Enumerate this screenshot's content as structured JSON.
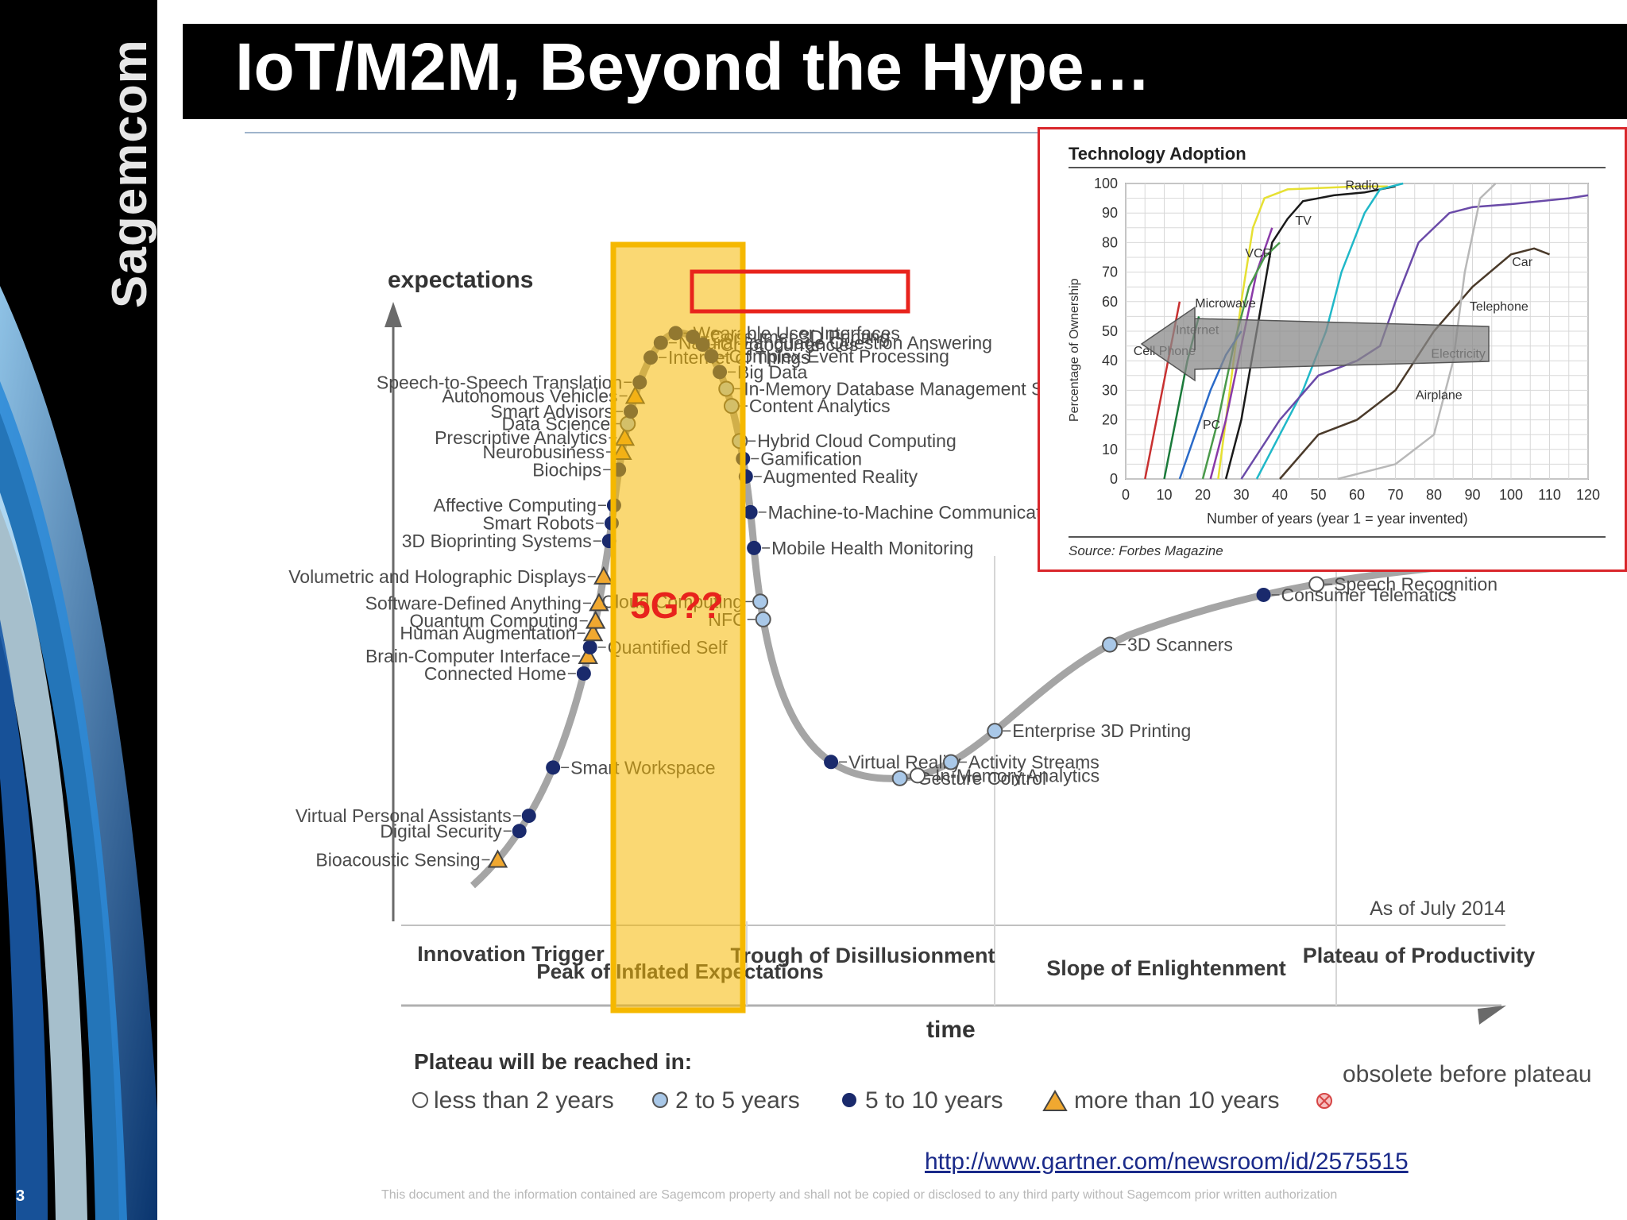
{
  "brand": "Sagemcom",
  "page_number": "3",
  "title": "IoT/M2M, Beyond the Hype…",
  "url": "http://www.gartner.com/newsroom/id/2575515",
  "footer": "This document and the information contained are Sagemcom property and shall not be copied or disclosed to any third party without Sagemcom prior written authorization",
  "colors": {
    "accent_orange": "#f5b800",
    "highlight_red": "#e8231c",
    "curve": "#a0a0a0",
    "dark_dot": "#1a2a6c",
    "light_dot": "#a9c8e8"
  },
  "chart_data": [
    {
      "type": "scatter",
      "title": "",
      "ylabel": "expectations",
      "xlabel": "time",
      "as_of": "As of July 2014",
      "phases": [
        "Innovation Trigger",
        "Peak of Inflated Expectations",
        "Trough of Disillusionment",
        "Slope of Enlightenment",
        "Plateau of Productivity"
      ],
      "annotation": "5G??",
      "highlight": "Internet of Things",
      "legend_title": "Plateau will be reached in:",
      "legend": [
        {
          "label": "less than 2 years",
          "marker": "open-circle"
        },
        {
          "label": "2 to 5 years",
          "marker": "light-circle"
        },
        {
          "label": "5 to 10 years",
          "marker": "dark-circle"
        },
        {
          "label": "more than 10 years",
          "marker": "triangle"
        },
        {
          "label": "obsolete before plateau",
          "marker": "crossed-circle"
        }
      ],
      "items": [
        {
          "label": "Bioacoustic Sensing",
          "t": 0.02,
          "cat": "triangle",
          "side": "left"
        },
        {
          "label": "Digital Security",
          "t": 0.04,
          "cat": "dark",
          "side": "left"
        },
        {
          "label": "Virtual Personal Assistants",
          "t": 0.05,
          "cat": "dark",
          "side": "left"
        },
        {
          "label": "Smart Workspace",
          "t": 0.08,
          "cat": "dark",
          "side": "right"
        },
        {
          "label": "Connected Home",
          "t": 0.135,
          "cat": "dark",
          "side": "left"
        },
        {
          "label": "Brain-Computer Interface",
          "t": 0.145,
          "cat": "triangle",
          "side": "left"
        },
        {
          "label": "Quantified Self",
          "t": 0.15,
          "cat": "dark",
          "side": "right"
        },
        {
          "label": "Human Augmentation",
          "t": 0.158,
          "cat": "triangle",
          "side": "left"
        },
        {
          "label": "Quantum Computing",
          "t": 0.165,
          "cat": "triangle",
          "side": "left"
        },
        {
          "label": "Software-Defined Anything",
          "t": 0.175,
          "cat": "triangle",
          "side": "left"
        },
        {
          "label": "Volumetric and Holographic Displays",
          "t": 0.19,
          "cat": "triangle",
          "side": "left"
        },
        {
          "label": "3D Bioprinting Systems",
          "t": 0.21,
          "cat": "dark",
          "side": "left"
        },
        {
          "label": "Smart Robots",
          "t": 0.22,
          "cat": "dark",
          "side": "left"
        },
        {
          "label": "Affective Computing",
          "t": 0.23,
          "cat": "dark",
          "side": "left"
        },
        {
          "label": "Biochips",
          "t": 0.25,
          "cat": "dark",
          "side": "left"
        },
        {
          "label": "Neurobusiness",
          "t": 0.26,
          "cat": "triangle",
          "side": "left"
        },
        {
          "label": "Prescriptive Analytics",
          "t": 0.268,
          "cat": "triangle",
          "side": "left"
        },
        {
          "label": "Data Science",
          "t": 0.276,
          "cat": "light",
          "side": "left"
        },
        {
          "label": "Smart Advisors",
          "t": 0.283,
          "cat": "dark",
          "side": "left"
        },
        {
          "label": "Autonomous Vehicles",
          "t": 0.292,
          "cat": "triangle",
          "side": "left"
        },
        {
          "label": "Speech-to-Speech Translation",
          "t": 0.3,
          "cat": "dark",
          "side": "left"
        },
        {
          "label": "Internet of Things",
          "t": 0.315,
          "cat": "dark",
          "side": "right"
        },
        {
          "label": "Natural-Language Question Answering",
          "t": 0.325,
          "cat": "dark",
          "side": "right"
        },
        {
          "label": "Wearable User Interfaces",
          "t": 0.335,
          "cat": "dark",
          "side": "right"
        },
        {
          "label": "Consumer 3D Printing",
          "t": 0.345,
          "cat": "dark",
          "side": "right"
        },
        {
          "label": "Cryptocurrencies",
          "t": 0.352,
          "cat": "dark",
          "side": "right"
        },
        {
          "label": "Complex-Event Processing",
          "t": 0.36,
          "cat": "dark",
          "side": "right"
        },
        {
          "label": "Big Data",
          "t": 0.37,
          "cat": "dark",
          "side": "right"
        },
        {
          "label": "In-Memory Database Management Systems",
          "t": 0.38,
          "cat": "light",
          "side": "right"
        },
        {
          "label": "Content Analytics",
          "t": 0.39,
          "cat": "light",
          "side": "right"
        },
        {
          "label": "Hybrid Cloud Computing",
          "t": 0.41,
          "cat": "light",
          "side": "right"
        },
        {
          "label": "Gamification",
          "t": 0.42,
          "cat": "dark",
          "side": "right"
        },
        {
          "label": "Augmented Reality",
          "t": 0.43,
          "cat": "dark",
          "side": "right"
        },
        {
          "label": "Machine-to-Machine Communication Services",
          "t": 0.45,
          "cat": "dark",
          "side": "right"
        },
        {
          "label": "Mobile Health Monitoring",
          "t": 0.47,
          "cat": "dark",
          "side": "right"
        },
        {
          "label": "Cloud Computing",
          "t": 0.5,
          "cat": "light",
          "side": "left"
        },
        {
          "label": "NFC",
          "t": 0.51,
          "cat": "light",
          "side": "left"
        },
        {
          "label": "Virtual Reality",
          "t": 0.6,
          "cat": "dark",
          "side": "right"
        },
        {
          "label": "Gesture Control",
          "t": 0.64,
          "cat": "light",
          "side": "right"
        },
        {
          "label": "In-Memory Analytics",
          "t": 0.65,
          "cat": "open",
          "side": "right"
        },
        {
          "label": "Activity Streams",
          "t": 0.67,
          "cat": "light",
          "side": "right"
        },
        {
          "label": "Enterprise 3D Printing",
          "t": 0.7,
          "cat": "light",
          "side": "right"
        },
        {
          "label": "3D Scanners",
          "t": 0.78,
          "cat": "light",
          "side": "right"
        },
        {
          "label": "Consumer Telematics",
          "t": 0.87,
          "cat": "dark",
          "side": "right"
        },
        {
          "label": "Speech Recognition",
          "t": 0.9,
          "cat": "open",
          "side": "right"
        }
      ]
    },
    {
      "type": "line",
      "title": "Technology Adoption",
      "xlabel": "Number of years (year 1 = year invented)",
      "ylabel": "Percentage of Ownership",
      "source": "Source: Forbes Magazine",
      "xlim": [
        0,
        120
      ],
      "ylim": [
        0,
        100
      ],
      "xticks": [
        0,
        10,
        20,
        30,
        40,
        50,
        60,
        70,
        80,
        90,
        100,
        110,
        120
      ],
      "yticks": [
        0,
        10,
        20,
        30,
        40,
        50,
        60,
        70,
        80,
        90,
        100
      ],
      "series": [
        {
          "name": "Radio",
          "color": "#1a1a1a",
          "points": [
            [
              26,
              0
            ],
            [
              30,
              20
            ],
            [
              34,
              50
            ],
            [
              38,
              80
            ],
            [
              42,
              88
            ],
            [
              46,
              94
            ],
            [
              54,
              96
            ],
            [
              62,
              97
            ],
            [
              70,
              99
            ]
          ]
        },
        {
          "name": "TV",
          "color": "#e6e033",
          "points": [
            [
              24,
              0
            ],
            [
              27,
              30
            ],
            [
              30,
              60
            ],
            [
              33,
              85
            ],
            [
              36,
              95
            ],
            [
              42,
              98
            ],
            [
              60,
              99
            ],
            [
              68,
              99
            ]
          ]
        },
        {
          "name": "VCR",
          "color": "#8a3aa8",
          "points": [
            [
              22,
              0
            ],
            [
              26,
              20
            ],
            [
              30,
              45
            ],
            [
              34,
              70
            ],
            [
              38,
              85
            ]
          ]
        },
        {
          "name": "Microwave",
          "color": "#4a9a4a",
          "points": [
            [
              20,
              0
            ],
            [
              24,
              20
            ],
            [
              28,
              45
            ],
            [
              32,
              65
            ],
            [
              36,
              75
            ],
            [
              40,
              80
            ]
          ]
        },
        {
          "name": "Cell Phone",
          "color": "#c83030",
          "points": [
            [
              5,
              0
            ],
            [
              8,
              20
            ],
            [
              11,
              40
            ],
            [
              14,
              60
            ]
          ]
        },
        {
          "name": "Internet",
          "color": "#1a7a3a",
          "points": [
            [
              10,
              0
            ],
            [
              13,
              20
            ],
            [
              16,
              40
            ],
            [
              19,
              55
            ]
          ]
        },
        {
          "name": "PC",
          "color": "#2a6ac8",
          "points": [
            [
              14,
              0
            ],
            [
              18,
              15
            ],
            [
              22,
              30
            ],
            [
              26,
              42
            ],
            [
              30,
              50
            ]
          ]
        },
        {
          "name": "Electricity",
          "color": "#20b8c8",
          "points": [
            [
              34,
              0
            ],
            [
              40,
              15
            ],
            [
              46,
              30
            ],
            [
              52,
              50
            ],
            [
              56,
              70
            ],
            [
              62,
              90
            ],
            [
              66,
              98
            ],
            [
              72,
              100
            ]
          ]
        },
        {
          "name": "Telephone",
          "color": "#6a4aa8",
          "points": [
            [
              30,
              0
            ],
            [
              40,
              20
            ],
            [
              50,
              35
            ],
            [
              60,
              40
            ],
            [
              66,
              45
            ],
            [
              70,
              60
            ],
            [
              76,
              80
            ],
            [
              84,
              90
            ],
            [
              90,
              92
            ],
            [
              100,
              93
            ],
            [
              115,
              95
            ],
            [
              120,
              96
            ]
          ]
        },
        {
          "name": "Car",
          "color": "#4a3a2a",
          "points": [
            [
              40,
              0
            ],
            [
              50,
              15
            ],
            [
              60,
              20
            ],
            [
              70,
              30
            ],
            [
              80,
              50
            ],
            [
              90,
              65
            ],
            [
              100,
              76
            ],
            [
              106,
              78
            ],
            [
              110,
              76
            ]
          ]
        },
        {
          "name": "Airplane",
          "color": "#b8b8b8",
          "points": [
            [
              55,
              0
            ],
            [
              70,
              5
            ],
            [
              80,
              15
            ],
            [
              85,
              40
            ],
            [
              88,
              70
            ],
            [
              92,
              95
            ],
            [
              96,
              100
            ]
          ]
        }
      ]
    }
  ]
}
